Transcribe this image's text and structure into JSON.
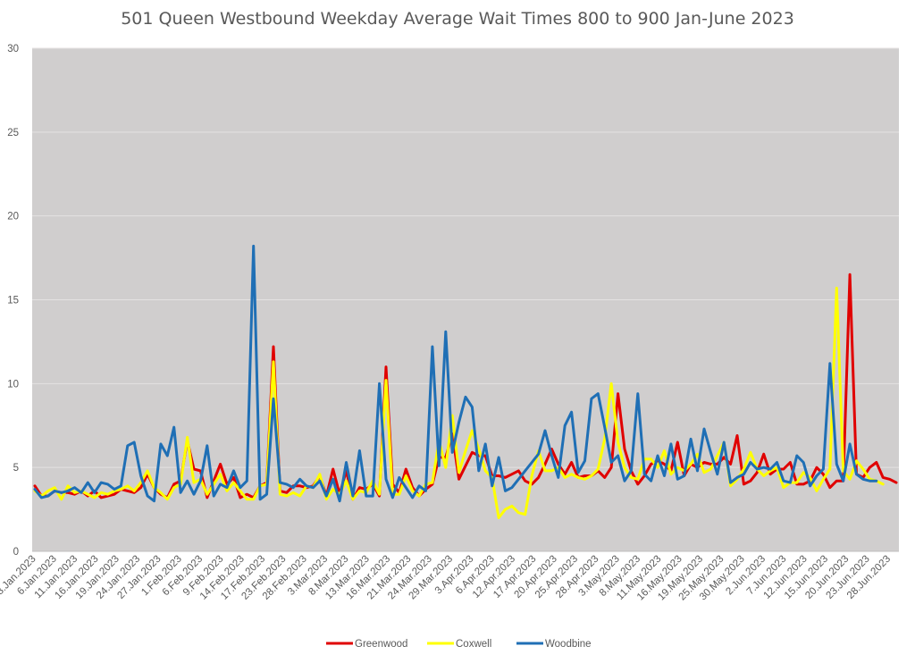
{
  "chart_data": {
    "type": "line",
    "title": "501 Queen Westbound Weekday Average Wait Times 800 to 900 Jan-June 2023",
    "xlabel": "",
    "ylabel": "",
    "ylim": [
      0,
      30
    ],
    "yticks": [
      0,
      5,
      10,
      15,
      20,
      25,
      30
    ],
    "grid": true,
    "legend": "bottom",
    "plot_background": "#d0cece",
    "x_tick_labels": [
      "3.Jan.2023",
      "6.Jan.2023",
      "11.Jan.2023",
      "16.Jan.2023",
      "19.Jan.2023",
      "24.Jan.2023",
      "27.Jan.2023",
      "1.Feb.2023",
      "6.Feb.2023",
      "9.Feb.2023",
      "14.Feb.2023",
      "17.Feb.2023",
      "23.Feb.2023",
      "28.Feb.2023",
      "3.Mar.2023",
      "8.Mar.2023",
      "13.Mar.2023",
      "16.Mar.2023",
      "21.Mar.2023",
      "24.Mar.2023",
      "29.Mar.2023",
      "3.Apr.2023",
      "6.Apr.2023",
      "12.Apr.2023",
      "17.Apr.2023",
      "20.Apr.2023",
      "25.Apr.2023",
      "28.Apr.2023",
      "3.May.2023",
      "8.May.2023",
      "11.May.2023",
      "16.May.2023",
      "19.May.2023",
      "25.May.2023",
      "30.May.2023",
      "2.Jun.2023",
      "7.Jun.2023",
      "12.Jun.2023",
      "15.Jun.2023",
      "20.Jun.2023",
      "23.Jun.2023",
      "28.Jun.2023"
    ],
    "series": [
      {
        "name": "Greenwood",
        "color": "#e00000",
        "values": [
          3.9,
          3.3,
          3.3,
          3.6,
          3.5,
          3.5,
          3.4,
          3.6,
          3.3,
          3.6,
          3.2,
          3.3,
          3.4,
          3.7,
          3.6,
          3.5,
          3.8,
          4.6,
          3.8,
          3.4,
          3.2,
          4.0,
          4.2,
          6.6,
          4.9,
          4.8,
          3.2,
          4.2,
          5.2,
          4.0,
          4.4,
          3.2,
          3.4,
          3.2,
          3.9,
          4.1,
          12.2,
          3.6,
          3.5,
          3.9,
          3.9,
          3.8,
          3.9,
          4.5,
          3.3,
          4.9,
          3.4,
          4.8,
          3.1,
          3.8,
          3.7,
          4.0,
          3.3,
          11.0,
          4.0,
          3.5,
          4.9,
          3.8,
          3.3,
          3.7,
          4.0,
          5.6,
          5.6,
          7.0,
          4.3,
          5.1,
          5.9,
          5.7,
          5.7,
          4.5,
          4.5,
          4.4,
          4.6,
          4.8,
          4.2,
          4.0,
          4.4,
          5.2,
          6.1,
          5.2,
          4.6,
          5.3,
          4.4,
          4.5,
          4.5,
          4.8,
          4.4,
          5.0,
          9.4,
          6.1,
          4.8,
          4.0,
          4.5,
          5.2,
          5.4,
          5.2,
          4.8,
          6.5,
          4.5,
          5.2,
          5.0,
          5.3,
          5.2,
          5.2,
          5.6,
          5.2,
          6.9,
          4.0,
          4.2,
          4.7,
          5.8,
          4.6,
          4.9,
          4.9,
          5.3,
          4.0,
          4.0,
          4.2,
          5.0,
          4.6,
          3.8,
          4.2,
          4.2,
          16.5,
          4.6,
          4.4,
          5.0,
          5.3,
          4.4,
          4.3,
          4.1
        ]
      },
      {
        "name": "Coxwell",
        "color": "#ffff00",
        "values": [
          3.6,
          3.3,
          3.6,
          3.8,
          3.1,
          3.9,
          3.5,
          3.6,
          3.4,
          3.2,
          3.5,
          3.4,
          3.6,
          3.7,
          3.9,
          3.6,
          4.1,
          4.8,
          3.8,
          3.5,
          3.1,
          3.8,
          4.0,
          6.8,
          4.1,
          4.3,
          3.4,
          4.0,
          4.6,
          3.6,
          4.1,
          3.6,
          3.1,
          3.1,
          3.9,
          4.0,
          11.3,
          3.4,
          3.3,
          3.5,
          3.3,
          3.9,
          3.8,
          4.6,
          3.1,
          3.7,
          3.4,
          4.2,
          3.1,
          3.6,
          3.5,
          4.2,
          3.4,
          10.2,
          3.4,
          3.4,
          4.5,
          3.6,
          3.3,
          4.0,
          4.1,
          6.6,
          5.0,
          8.1,
          4.7,
          6.0,
          7.2,
          6.1,
          4.8,
          4.4,
          2.0,
          2.5,
          2.7,
          2.3,
          2.2,
          4.5,
          6.0,
          4.8,
          4.8,
          5.0,
          4.4,
          4.6,
          4.4,
          4.3,
          4.5,
          4.9,
          6.7,
          10.0,
          6.5,
          5.0,
          4.4,
          4.3,
          5.5,
          5.5,
          5.0,
          6.0,
          4.6,
          5.0,
          4.8,
          5.2,
          5.8,
          4.7,
          4.9,
          5.7,
          6.5,
          3.9,
          4.3,
          4.9,
          5.9,
          4.9,
          4.5,
          4.8,
          5.0,
          3.8,
          4.1,
          4.1,
          4.7,
          4.4,
          3.6,
          4.3,
          4.9,
          15.7,
          4.8,
          4.3,
          5.4,
          4.9,
          4.3,
          4.2,
          4.0
        ]
      },
      {
        "name": "Woodbine",
        "color": "#1f6fb5",
        "values": [
          3.7,
          3.2,
          3.3,
          3.6,
          3.5,
          3.6,
          3.8,
          3.5,
          4.1,
          3.5,
          4.1,
          4.0,
          3.7,
          3.9,
          6.3,
          6.5,
          4.5,
          3.3,
          3.0,
          6.4,
          5.7,
          7.4,
          3.5,
          4.2,
          3.4,
          4.2,
          6.3,
          3.3,
          4.0,
          3.8,
          4.8,
          3.8,
          4.2,
          18.2,
          3.1,
          3.4,
          9.1,
          4.1,
          4.0,
          3.8,
          4.3,
          3.9,
          3.8,
          4.2,
          3.3,
          4.3,
          3.0,
          5.3,
          3.3,
          6.0,
          3.3,
          3.3,
          10.0,
          4.3,
          3.2,
          4.4,
          3.8,
          3.2,
          3.9,
          3.6,
          12.2,
          5.1,
          13.1,
          5.9,
          7.7,
          9.2,
          8.6,
          4.8,
          6.4,
          3.9,
          5.6,
          3.6,
          3.8,
          4.3,
          4.8,
          5.3,
          5.8,
          7.2,
          5.7,
          4.4,
          7.5,
          8.3,
          4.7,
          5.4,
          9.1,
          9.4,
          7.4,
          5.3,
          5.7,
          4.2,
          4.8,
          9.4,
          4.6,
          4.2,
          5.7,
          4.5,
          6.4,
          4.3,
          4.5,
          6.7,
          4.8,
          7.3,
          5.9,
          4.6,
          6.5,
          4.1,
          4.4,
          4.6,
          5.3,
          4.9,
          5.0,
          4.9,
          5.3,
          4.2,
          4.1,
          5.7,
          5.3,
          3.9,
          4.5,
          4.9,
          11.2,
          5.2,
          4.2,
          6.4,
          4.6,
          4.3,
          4.2,
          4.2
        ]
      }
    ]
  }
}
